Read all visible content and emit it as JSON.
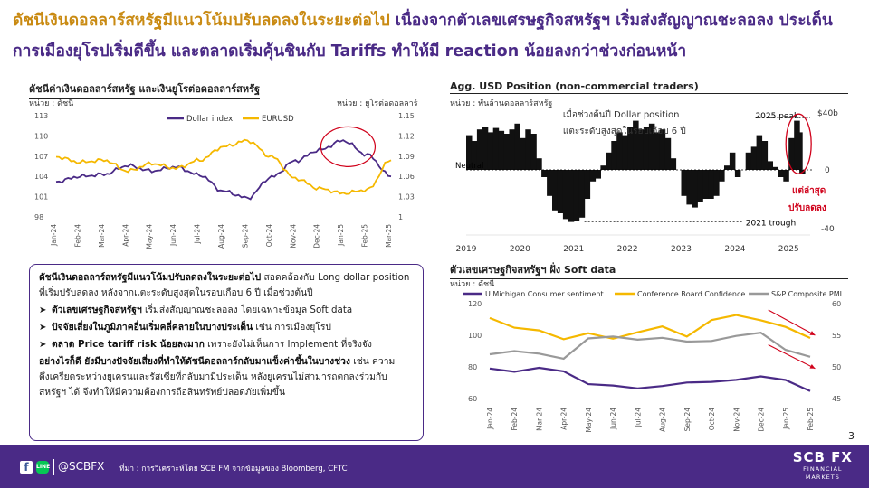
{
  "title": {
    "part1": "ดัชนีเงินดอลลาร์สหรัฐมีแนวโน้มปรับลดลงในระยะต่อไป",
    "part2": "เนื่องจากตัวเลขเศรษฐกิจสหรัฐฯ เริ่มส่งสัญญาณชะลอลง ประเด็นการเมืองยุโรปเริ่มดีขึ้น และตลาดเริ่มคุ้นชินกับ Tariffs ทำให้มี reaction น้อยลงกว่าช่วงก่อนหน้า"
  },
  "chart1": {
    "title": "ดัชนีค่าเงินดอลลาร์สหรัฐ และเงินยูโรต่อดอลลาร์สหรัฐ",
    "unit_left": "หน่วย : ดัชนี",
    "unit_right": "หน่วย : ยูโรต่อดอลลาร์",
    "colors": {
      "dollar": "#4a2a86",
      "euro": "#f5b800"
    }
  },
  "chart2": {
    "title": "Agg. USD Position (non-commercial traders)",
    "unit": "หน่วย : พันล้านดอลลาร์สหรัฐ",
    "annotation": "เมื่อช่วงต้นปี Dollar position แตะระดับสูงสุดในรอบเกือบ 6 ปี",
    "peak_label": "2025 peak",
    "neutral_label": "Neutral",
    "trough_label": "2021 trough",
    "latest_label_1": "แต่ล่าสุด",
    "latest_label_2": "ปรับลดลง",
    "colors": {
      "bar": "#111111",
      "callout": "#d0021b"
    }
  },
  "chart3": {
    "title": "ตัวเลขเศรษฐกิจสหรัฐฯ ฝั่ง Soft data",
    "unit": "หน่วย : ดัชนี",
    "colors": {
      "umich": "#4a2a86",
      "cb": "#f5b800",
      "pmi": "#999999",
      "arrow": "#d0021b"
    }
  },
  "chart_data": [
    {
      "type": "line",
      "title": "ดัชนีค่าเงินดอลลาร์สหรัฐ และเงินยูโรต่อดอลลาร์สหรัฐ",
      "categories": [
        "Jan-24",
        "Feb-24",
        "Mar-24",
        "Apr-24",
        "May-24",
        "Jun-24",
        "Jul-24",
        "Aug-24",
        "Sep-24",
        "Oct-24",
        "Nov-24",
        "Dec-24",
        "Jan-25",
        "Feb-25",
        "Mar-25"
      ],
      "left_ticks": [
        "113",
        "110",
        "107",
        "104",
        "101",
        "98"
      ],
      "right_ticks": [
        "1.15",
        "1.12",
        "1.09",
        "1.06",
        "1.03",
        "1"
      ],
      "ylim_left": [
        98,
        113
      ],
      "ylim_right": [
        1.0,
        1.15
      ],
      "series": [
        {
          "name": "Dollar index",
          "axis": "left",
          "values": [
            103.2,
            104.0,
            104.3,
            105.6,
            104.8,
            105.4,
            104.2,
            101.8,
            100.8,
            103.9,
            106.3,
            107.9,
            109.3,
            107.2,
            104.0
          ]
        },
        {
          "name": "EURUSD",
          "axis": "right",
          "values": [
            1.089,
            1.081,
            1.084,
            1.068,
            1.079,
            1.072,
            1.084,
            1.104,
            1.113,
            1.089,
            1.057,
            1.042,
            1.035,
            1.04,
            1.084
          ]
        }
      ]
    },
    {
      "type": "bar",
      "title": "Agg. USD Position (non-commercial traders)",
      "x_ticks": [
        "2019",
        "2020",
        "2021",
        "2022",
        "2023",
        "2024",
        "2025"
      ],
      "right_ticks": [
        "$40b",
        "0",
        "-40"
      ],
      "ylim": [
        -40,
        40
      ],
      "x": [
        2019.0,
        2019.1,
        2019.2,
        2019.3,
        2019.4,
        2019.5,
        2019.6,
        2019.7,
        2019.8,
        2019.9,
        2020.0,
        2020.1,
        2020.2,
        2020.3,
        2020.4,
        2020.5,
        2020.6,
        2020.7,
        2020.8,
        2020.9,
        2021.0,
        2021.1,
        2021.2,
        2021.3,
        2021.4,
        2021.5,
        2021.6,
        2021.7,
        2021.8,
        2021.9,
        2022.0,
        2022.1,
        2022.2,
        2022.3,
        2022.4,
        2022.5,
        2022.6,
        2022.7,
        2022.8,
        2022.9,
        2023.0,
        2023.1,
        2023.2,
        2023.3,
        2023.4,
        2023.5,
        2023.6,
        2023.7,
        2023.8,
        2023.9,
        2024.0,
        2024.1,
        2024.2,
        2024.3,
        2024.4,
        2024.5,
        2024.6,
        2024.7,
        2024.8,
        2024.9,
        2025.0,
        2025.1,
        2025.15,
        2025.2
      ],
      "values": [
        24,
        20,
        28,
        30,
        26,
        29,
        27,
        25,
        28,
        32,
        22,
        28,
        25,
        8,
        -5,
        -18,
        -28,
        -30,
        -34,
        -36,
        -35,
        -33,
        -20,
        -8,
        -6,
        3,
        12,
        20,
        26,
        24,
        30,
        34,
        28,
        30,
        32,
        26,
        28,
        22,
        8,
        0,
        -18,
        -24,
        -26,
        -22,
        -20,
        -20,
        -18,
        -8,
        3,
        12,
        -5,
        0,
        12,
        16,
        24,
        20,
        6,
        2,
        -5,
        -8,
        22,
        34,
        26,
        -3
      ]
    },
    {
      "type": "line",
      "title": "ตัวเลขเศรษฐกิจสหรัฐฯ ฝั่ง Soft data",
      "categories": [
        "Jan-24",
        "Feb-24",
        "Mar-24",
        "Apr-24",
        "May-24",
        "Jun-24",
        "Jul-24",
        "Aug-24",
        "Sep-24",
        "Oct-24",
        "Nov-24",
        "Dec-24",
        "Jan-25",
        "Feb-25"
      ],
      "left_ticks": [
        "120",
        "100",
        "80",
        "60"
      ],
      "right_ticks": [
        "60",
        "55",
        "50",
        "45"
      ],
      "ylim_left": [
        60,
        120
      ],
      "ylim_right": [
        45,
        60
      ],
      "series": [
        {
          "name": "U.Michigan Consumer sentiment",
          "axis": "left",
          "values": [
            79.0,
            76.9,
            79.4,
            77.2,
            69.1,
            68.2,
            66.4,
            67.9,
            70.1,
            70.5,
            71.8,
            74.0,
            71.7,
            64.7
          ]
        },
        {
          "name": "Conference Board Confidence",
          "axis": "left",
          "values": [
            110.9,
            104.8,
            103.1,
            97.5,
            101.3,
            97.8,
            101.9,
            105.6,
            99.2,
            109.6,
            112.8,
            109.5,
            105.3,
            98.3
          ]
        },
        {
          "name": "S&P Composite PMI",
          "axis": "right",
          "values": [
            52.0,
            52.5,
            52.1,
            51.3,
            54.5,
            54.8,
            54.3,
            54.6,
            54.0,
            54.1,
            54.9,
            55.4,
            52.7,
            51.6
          ]
        }
      ]
    }
  ],
  "textbox": {
    "p1_bold": "ดัชนีเงินดอลลาร์สหรัฐมีแนวโน้มปรับลดลงในระยะต่อไป",
    "p1_rest": " สอดคล้องกับ Long dollar position ที่เริ่มปรับลดลง หลังจากแตะระดับสูงสุดในรอบเกือบ 6 ปี เมื่อช่วงต้นปี",
    "b1_bold": "ตัวเลขเศรษฐกิจสหรัฐฯ",
    "b1_rest": " เริ่มส่งสัญญาณชะลอลง โดยเฉพาะข้อมูล Soft data",
    "b2_bold": "ปัจจัยเสี่ยงในภูมิภาคอื่นเริ่มคลี่คลายในบางประเด็น",
    "b2_rest": " เช่น การเมืองยุโรป",
    "b3_bold": "ตลาด Price tariff risk น้อยลงมาก",
    "b3_rest": " เพราะยังไม่เห็นการ Implement ที่จริงจัง",
    "p2_bold": "อย่างไรก็ดี ยังมีบางปัจจัยเสี่ยงที่ทำให้ดัชนีดอลลาร์กลับมาแข็งค่าขึ้นในบางช่วง",
    "p2_rest": " เช่น ความตึงเครียดระหว่างยูเครนและรัสเซียที่กลับมามีประเด็น หลังยูเครนไม่สามารถตกลงร่วมกับสหรัฐฯ ได้ จึงทำให้มีความต้องการถือสินทรัพย์ปลอดภัยเพิ่มขึ้น"
  },
  "footer": {
    "handle": "@SCBFX",
    "source": "ที่มา : การวิเคราะห์โดย SCB FM จากข้อมูลของ Bloomberg, CFTC",
    "brand_main": "SCB FX",
    "brand_sub1": "FINANCIAL",
    "brand_sub2": "MARKETS"
  },
  "page_number": "3"
}
